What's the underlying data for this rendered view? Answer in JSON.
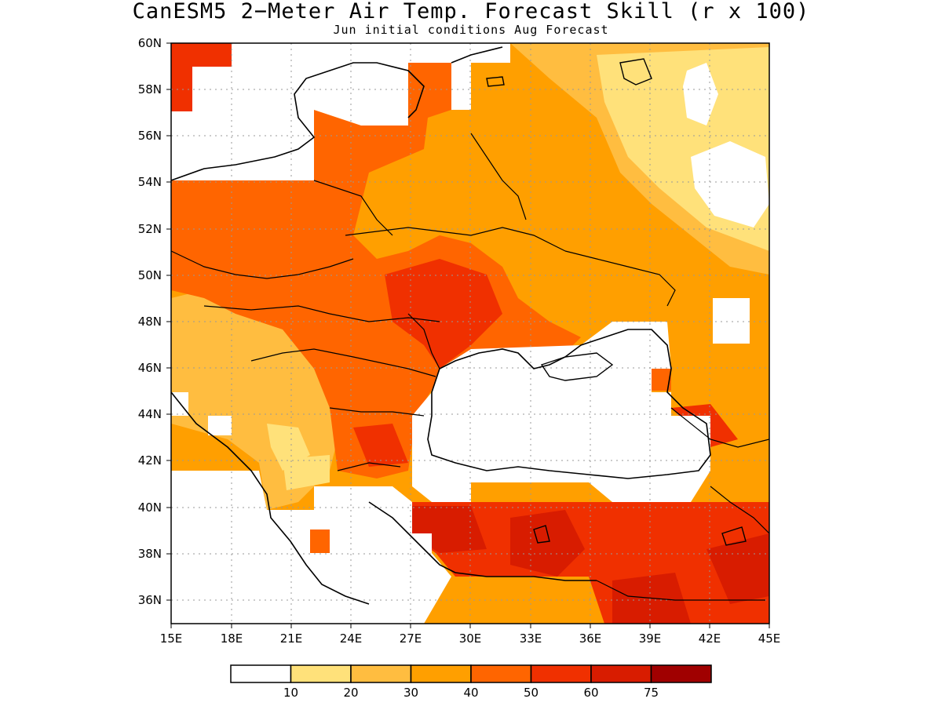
{
  "title": "CanESM5 2−Meter Air Temp. Forecast Skill (r x 100)",
  "subtitle": "Jun initial conditions  Aug Forecast",
  "map": {
    "lon_range": [
      15,
      45
    ],
    "lat_range": [
      35,
      60
    ],
    "projection": "lat-lon",
    "grid": true,
    "lat_ticks": [
      "60N",
      "58N",
      "56N",
      "54N",
      "52N",
      "50N",
      "48N",
      "46N",
      "44N",
      "42N",
      "40N",
      "38N",
      "36N"
    ],
    "lon_ticks": [
      "15E",
      "18E",
      "21E",
      "24E",
      "27E",
      "30E",
      "33E",
      "36E",
      "39E",
      "42E",
      "45E"
    ],
    "region": "Eastern Europe, Black Sea and Anatolia",
    "masked_areas": "white (no skill / ocean)"
  },
  "legend": {
    "bins": [
      {
        "color": "#ffffff"
      },
      {
        "color": "#ffe17a"
      },
      {
        "color": "#ffbd40"
      },
      {
        "color": "#ff9f00"
      },
      {
        "color": "#ff6500"
      },
      {
        "color": "#f03000"
      },
      {
        "color": "#d81c00"
      },
      {
        "color": "#a00000"
      }
    ],
    "labels": [
      "10",
      "20",
      "30",
      "40",
      "50",
      "60",
      "75"
    ]
  }
}
